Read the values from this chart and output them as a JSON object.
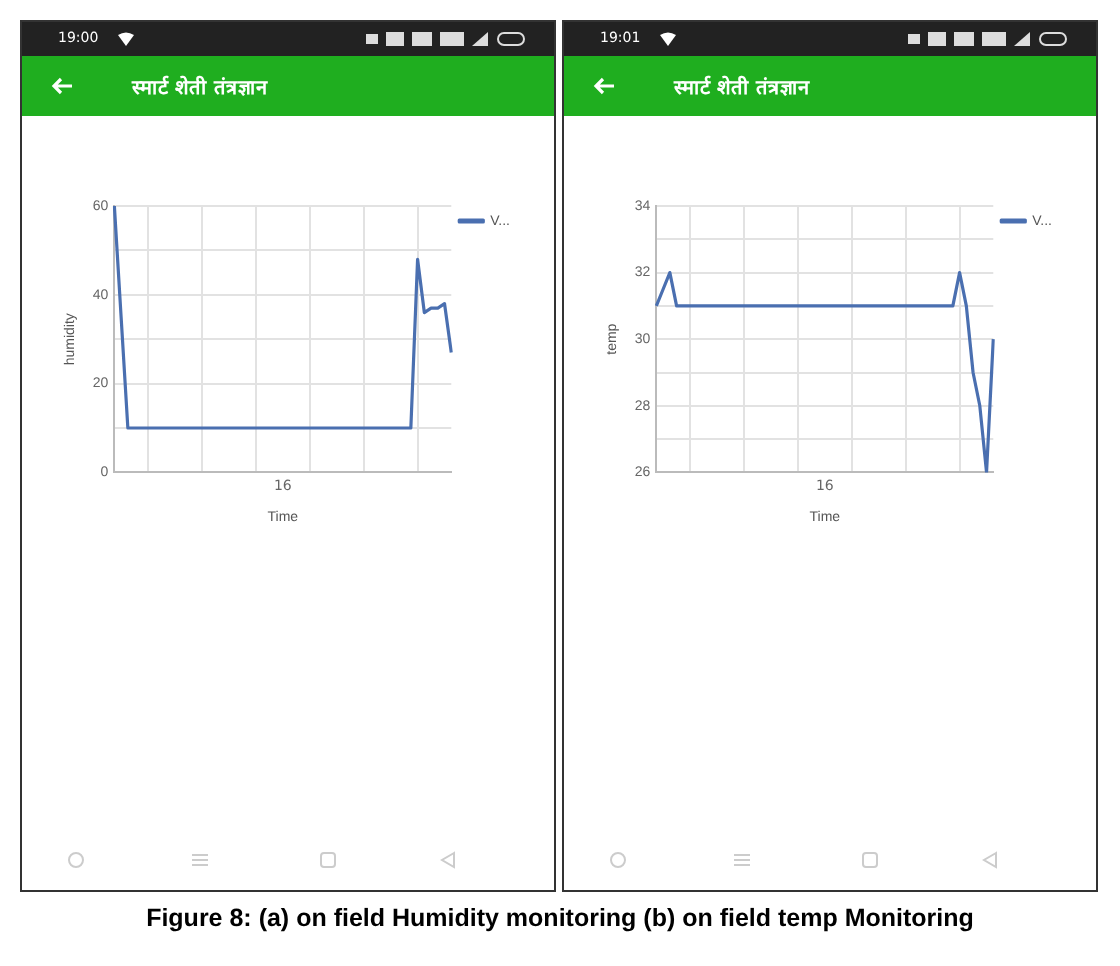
{
  "chart_data": [
    {
      "type": "line",
      "title": "स्मार्ट शेती तंत्रज्ञान",
      "xlabel": "Time",
      "ylabel": "humidity",
      "annotations": [
        "19:00",
        "16",
        "Figure 8: (a) on field Humidity monitoring (b) on field temp Monitoring"
      ],
      "categories": [
        null,
        null,
        null,
        null,
        null,
        null,
        null,
        null,
        null,
        null,
        null,
        null,
        null,
        null,
        null,
        null,
        null,
        null,
        null,
        null,
        null,
        null,
        null,
        null,
        null,
        null,
        null,
        null,
        null,
        null,
        null,
        null,
        null,
        null,
        null,
        null,
        null,
        null,
        null,
        null,
        null,
        null,
        null,
        null,
        null,
        null,
        null,
        null,
        null,
        null,
        null
      ],
      "ylim": [
        0,
        60
      ],
      "yticks": [
        0,
        {
          "value": 10,
          "label": null
        },
        20,
        {
          "value": 30,
          "label": null
        },
        40,
        {
          "value": 50,
          "label": null
        },
        60
      ],
      "grid": true,
      "legend": "top right",
      "marker": "none",
      "series": [
        {
          "name": "V...",
          "color": "#4a6fb0",
          "values": [
            60,
            35,
            10,
            10,
            10,
            10,
            10,
            10,
            10,
            10,
            10,
            10,
            10,
            10,
            10,
            10,
            10,
            10,
            10,
            10,
            10,
            10,
            10,
            10,
            10,
            10,
            10,
            10,
            10,
            10,
            10,
            10,
            10,
            10,
            10,
            10,
            10,
            10,
            10,
            10,
            10,
            10,
            10,
            10,
            10,
            48,
            36,
            37,
            37,
            38,
            27
          ]
        }
      ]
    },
    {
      "type": "line",
      "title": "स्मार्ट शेती तंत्रज्ञान",
      "xlabel": "Time",
      "ylabel": "temp",
      "annotations": [
        "19:01",
        "16"
      ],
      "categories": [
        null,
        null,
        null,
        null,
        null,
        null,
        null,
        null,
        null,
        null,
        null,
        null,
        null,
        null,
        null,
        null,
        null,
        null,
        null,
        null,
        null,
        null,
        null,
        null,
        null,
        null,
        null,
        null,
        null,
        null,
        null,
        null,
        null,
        null,
        null,
        null,
        null,
        null,
        null,
        null,
        null,
        null,
        null,
        null,
        null,
        null,
        null,
        null,
        null,
        null,
        null
      ],
      "ylim": [
        26,
        34
      ],
      "yticks": [
        26,
        {
          "value": 27,
          "label": null
        },
        28,
        {
          "value": 29,
          "label": null
        },
        30,
        {
          "value": 31,
          "label": null
        },
        32,
        {
          "value": 33,
          "label": null
        },
        34
      ],
      "grid": true,
      "legend": "top right",
      "marker": "none",
      "series": [
        {
          "name": "V...",
          "color": "#4a6fb0",
          "values": [
            31,
            31.5,
            32,
            31,
            31,
            31,
            31,
            31,
            31,
            31,
            31,
            31,
            31,
            31,
            31,
            31,
            31,
            31,
            31,
            31,
            31,
            31,
            31,
            31,
            31,
            31,
            31,
            31,
            31,
            31,
            31,
            31,
            31,
            31,
            31,
            31,
            31,
            31,
            31,
            31,
            31,
            31,
            31,
            31,
            31,
            32,
            31,
            29,
            28,
            26,
            30
          ]
        }
      ]
    }
  ]
}
